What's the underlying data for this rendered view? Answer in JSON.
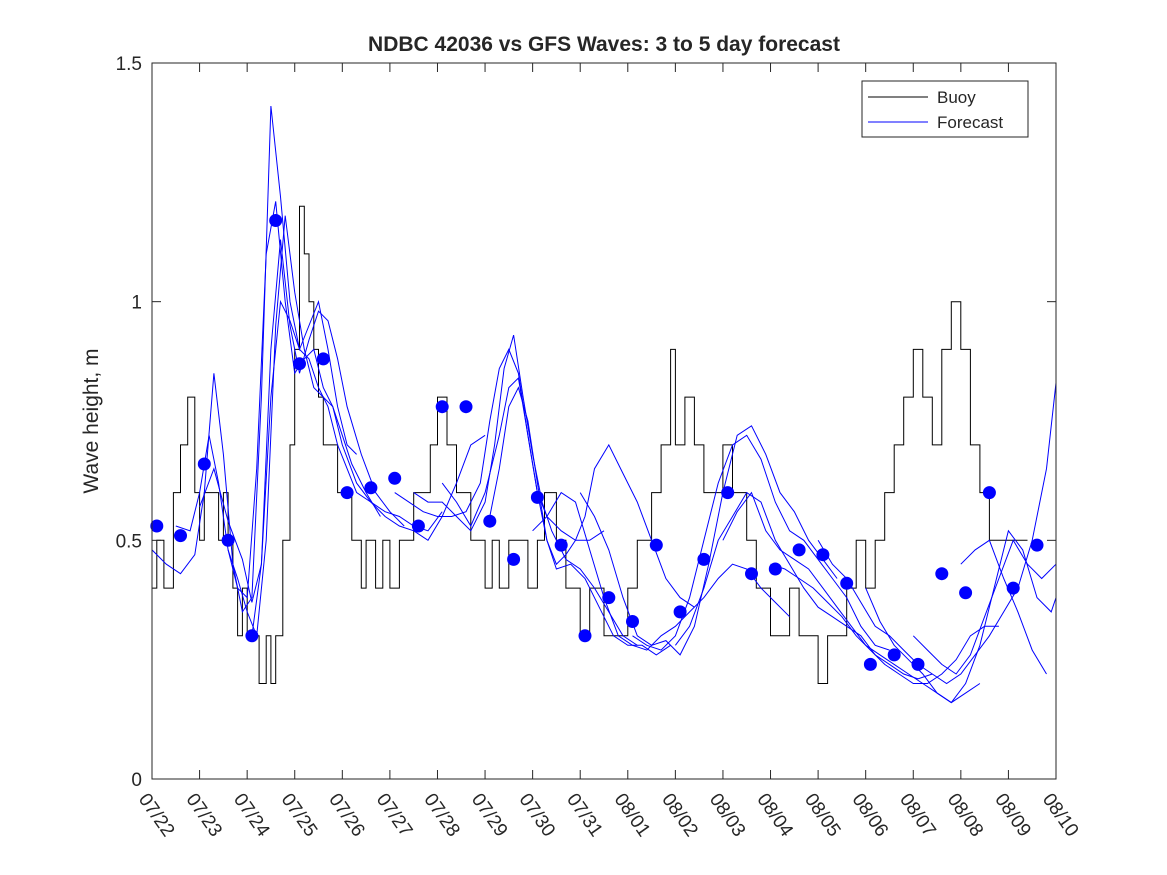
{
  "chart_data": {
    "type": "line",
    "title": "NDBC 42036 vs GFS Waves: 3 to 5 day forecast",
    "xlabel": "",
    "ylabel": "Wave height, m",
    "ylim": [
      0,
      1.5
    ],
    "yticks": [
      0,
      0.5,
      1,
      1.5
    ],
    "ytick_labels": [
      "0",
      "0.5",
      "1",
      "1.5"
    ],
    "xlim": [
      "2018-07-22",
      "2018-08-10"
    ],
    "xtick_labels": [
      "07/22",
      "07/23",
      "07/24",
      "07/25",
      "07/26",
      "07/27",
      "07/28",
      "07/29",
      "07/30",
      "07/31",
      "08/01",
      "08/02",
      "08/03",
      "08/04",
      "08/05",
      "08/06",
      "08/07",
      "08/08",
      "08/09",
      "08/10"
    ],
    "grid": false,
    "legend": {
      "position": "top-right",
      "entries": [
        "Buoy",
        "Forecast"
      ]
    },
    "colors": {
      "buoy": "#000000",
      "forecast": "#0000ff",
      "axes": "#262626"
    },
    "buoy": {
      "name": "Buoy",
      "x": [
        0,
        0.1,
        0.25,
        0.45,
        0.6,
        0.75,
        0.9,
        1.0,
        1.1,
        1.25,
        1.4,
        1.5,
        1.6,
        1.7,
        1.8,
        1.9,
        2.0,
        2.1,
        2.25,
        2.4,
        2.5,
        2.6,
        2.75,
        2.9,
        3.0,
        3.1,
        3.2,
        3.3,
        3.4,
        3.5,
        3.6,
        3.75,
        3.9,
        4.0,
        4.2,
        4.4,
        4.5,
        4.7,
        4.85,
        5.0,
        5.2,
        5.35,
        5.5,
        5.7,
        5.85,
        6.0,
        6.2,
        6.4,
        6.5,
        6.7,
        6.9,
        7.0,
        7.15,
        7.3,
        7.5,
        7.7,
        7.9,
        8.0,
        8.1,
        8.25,
        8.4,
        8.5,
        8.7,
        8.9,
        9.0,
        9.2,
        9.4,
        9.5,
        9.7,
        9.9,
        10.0,
        10.2,
        10.4,
        10.5,
        10.7,
        10.9,
        11.0,
        11.2,
        11.4,
        11.6,
        11.8,
        12.0,
        12.2,
        12.4,
        12.5,
        12.6,
        12.7,
        12.8,
        13.0,
        13.2,
        13.4,
        13.6,
        13.8,
        14.0,
        14.2,
        14.4,
        14.6,
        14.8,
        15.0,
        15.2,
        15.4,
        15.6,
        15.8,
        16.0,
        16.2,
        16.4,
        16.6,
        16.8,
        17.0,
        17.2,
        17.4,
        17.6,
        17.8,
        17.9,
        18.0,
        18.1,
        18.2,
        18.3,
        18.4
      ],
      "y": [
        0.4,
        0.5,
        0.4,
        0.6,
        0.7,
        0.8,
        0.6,
        0.5,
        0.6,
        0.6,
        0.5,
        0.6,
        0.5,
        0.4,
        0.3,
        0.4,
        0.3,
        0.3,
        0.2,
        0.3,
        0.2,
        0.3,
        0.5,
        0.7,
        0.9,
        1.2,
        1.1,
        1.0,
        0.9,
        0.8,
        0.7,
        0.7,
        0.6,
        0.6,
        0.5,
        0.4,
        0.5,
        0.4,
        0.5,
        0.4,
        0.5,
        0.5,
        0.6,
        0.6,
        0.7,
        0.8,
        0.7,
        0.6,
        0.6,
        0.5,
        0.5,
        0.4,
        0.5,
        0.4,
        0.5,
        0.5,
        0.4,
        0.4,
        0.5,
        0.6,
        0.6,
        0.5,
        0.4,
        0.4,
        0.3,
        0.4,
        0.4,
        0.3,
        0.3,
        0.3,
        0.4,
        0.5,
        0.5,
        0.6,
        0.7,
        0.9,
        0.7,
        0.8,
        0.7,
        0.6,
        0.6,
        0.7,
        0.6,
        0.6,
        0.5,
        0.5,
        0.4,
        0.4,
        0.3,
        0.3,
        0.4,
        0.3,
        0.3,
        0.2,
        0.3,
        0.3,
        0.4,
        0.5,
        0.4,
        0.5,
        0.6,
        0.7,
        0.8,
        0.9,
        0.8,
        0.7,
        0.9,
        1.0,
        0.9,
        0.7,
        0.6,
        0.5,
        0.5,
        0.5,
        0.5,
        0.5,
        0.5,
        0.5,
        0.5
      ]
    },
    "forecast": {
      "name": "Forecast",
      "runs": [
        {
          "x": [
            0,
            0.3,
            0.6,
            0.9,
            1.1,
            1.3,
            1.5,
            1.7,
            1.9,
            2.1,
            2.3,
            2.5,
            2.7,
            2.9,
            3.1,
            3.3,
            3.5,
            3.7,
            3.9,
            4.1,
            4.3
          ],
          "y": [
            0.48,
            0.45,
            0.43,
            0.47,
            0.6,
            0.85,
            0.68,
            0.45,
            0.35,
            0.38,
            0.8,
            1.41,
            1.22,
            1.0,
            0.9,
            0.95,
            1.0,
            0.9,
            0.78,
            0.7,
            0.68
          ]
        },
        {
          "x": [
            0.5,
            0.8,
            1.0,
            1.2,
            1.4,
            1.6,
            1.8,
            2.0,
            2.2,
            2.4,
            2.6,
            2.8,
            3.0,
            3.2,
            3.4,
            3.6,
            3.8,
            4.0,
            4.2,
            4.5,
            4.8
          ],
          "y": [
            0.53,
            0.52,
            0.6,
            0.72,
            0.62,
            0.48,
            0.4,
            0.38,
            0.65,
            1.1,
            1.21,
            1.0,
            0.85,
            0.88,
            0.9,
            0.82,
            0.78,
            0.72,
            0.66,
            0.6,
            0.55
          ]
        },
        {
          "x": [
            1.0,
            1.3,
            1.6,
            1.9,
            2.1,
            2.3,
            2.5,
            2.7,
            2.9,
            3.1,
            3.3,
            3.5,
            3.7,
            3.9,
            4.1,
            4.4,
            4.7,
            5.0,
            5.3
          ],
          "y": [
            0.57,
            0.65,
            0.54,
            0.46,
            0.37,
            0.45,
            0.9,
            1.13,
            0.95,
            0.85,
            0.92,
            0.98,
            0.96,
            0.88,
            0.78,
            0.68,
            0.6,
            0.56,
            0.53
          ]
        },
        {
          "x": [
            1.6,
            1.8,
            2.0,
            2.2,
            2.4,
            2.6,
            2.8,
            3.0,
            3.2,
            3.4,
            3.6,
            3.8,
            4.0,
            4.3,
            4.6,
            4.9,
            5.2,
            5.5,
            5.8,
            6.1
          ],
          "y": [
            0.48,
            0.42,
            0.35,
            0.3,
            0.5,
            0.95,
            1.18,
            1.02,
            0.9,
            0.82,
            0.8,
            0.78,
            0.7,
            0.62,
            0.58,
            0.56,
            0.55,
            0.53,
            0.52,
            0.56
          ]
        },
        {
          "x": [
            2.1,
            2.3,
            2.5,
            2.7,
            2.9,
            3.1,
            3.3,
            3.5,
            3.7,
            3.9,
            4.1,
            4.3,
            4.6,
            4.9,
            5.2,
            5.5,
            5.8,
            6.1,
            6.4,
            6.7,
            7.0
          ],
          "y": [
            0.3,
            0.45,
            0.8,
            1.0,
            0.96,
            0.9,
            0.88,
            0.82,
            0.78,
            0.7,
            0.65,
            0.6,
            0.58,
            0.55,
            0.53,
            0.52,
            0.5,
            0.55,
            0.62,
            0.7,
            0.72
          ]
        },
        {
          "x": [
            5.1,
            5.4,
            5.7,
            6.0,
            6.3,
            6.6,
            6.9,
            7.1,
            7.3,
            7.5,
            7.7,
            7.9,
            8.1,
            8.3,
            8.6,
            8.9,
            9.2,
            9.5
          ],
          "y": [
            0.6,
            0.58,
            0.56,
            0.55,
            0.55,
            0.56,
            0.62,
            0.75,
            0.86,
            0.9,
            0.85,
            0.72,
            0.6,
            0.55,
            0.52,
            0.5,
            0.5,
            0.52
          ]
        },
        {
          "x": [
            5.5,
            5.8,
            6.1,
            6.4,
            6.7,
            7.0,
            7.2,
            7.4,
            7.6,
            7.8,
            8.0,
            8.2,
            8.4,
            8.7,
            9.0,
            9.3,
            9.6,
            9.9,
            10.2
          ],
          "y": [
            0.6,
            0.58,
            0.58,
            0.55,
            0.52,
            0.58,
            0.7,
            0.86,
            0.93,
            0.8,
            0.68,
            0.58,
            0.52,
            0.46,
            0.44,
            0.4,
            0.35,
            0.3,
            0.28
          ]
        },
        {
          "x": [
            6.1,
            6.4,
            6.7,
            7.0,
            7.3,
            7.5,
            7.7,
            7.9,
            8.1,
            8.3,
            8.5,
            8.8,
            9.1,
            9.4,
            9.7,
            10.0,
            10.3,
            10.6,
            10.9
          ],
          "y": [
            0.62,
            0.58,
            0.53,
            0.6,
            0.72,
            0.82,
            0.84,
            0.72,
            0.6,
            0.5,
            0.44,
            0.45,
            0.42,
            0.36,
            0.3,
            0.28,
            0.28,
            0.26,
            0.28
          ]
        },
        {
          "x": [
            7.1,
            7.3,
            7.5,
            7.7,
            7.9,
            8.1,
            8.3,
            8.5,
            8.7,
            8.9,
            9.1,
            9.3,
            9.6,
            9.9,
            10.2,
            10.5,
            10.8,
            11.1,
            11.4
          ],
          "y": [
            0.55,
            0.65,
            0.78,
            0.82,
            0.75,
            0.62,
            0.5,
            0.45,
            0.47,
            0.5,
            0.55,
            0.65,
            0.7,
            0.64,
            0.58,
            0.5,
            0.42,
            0.38,
            0.36
          ]
        },
        {
          "x": [
            8.0,
            8.3,
            8.6,
            8.9,
            9.2,
            9.5,
            9.8,
            10.1,
            10.4,
            10.7,
            11.0,
            11.3,
            11.6,
            11.9,
            12.2,
            12.5,
            12.8,
            13.1,
            13.4
          ],
          "y": [
            0.52,
            0.55,
            0.6,
            0.58,
            0.48,
            0.38,
            0.3,
            0.28,
            0.27,
            0.3,
            0.32,
            0.35,
            0.38,
            0.42,
            0.45,
            0.44,
            0.4,
            0.37,
            0.34
          ]
        },
        {
          "x": [
            9.0,
            9.3,
            9.6,
            9.9,
            10.2,
            10.5,
            10.8,
            11.1,
            11.4,
            11.7,
            12.0,
            12.3,
            12.6,
            12.9,
            13.2,
            13.5,
            13.8,
            14.1,
            14.4
          ],
          "y": [
            0.6,
            0.55,
            0.48,
            0.38,
            0.3,
            0.28,
            0.29,
            0.26,
            0.32,
            0.45,
            0.6,
            0.72,
            0.74,
            0.68,
            0.6,
            0.56,
            0.5,
            0.46,
            0.42
          ]
        },
        {
          "x": [
            10.1,
            10.4,
            10.7,
            11.0,
            11.3,
            11.6,
            11.9,
            12.2,
            12.5,
            12.8,
            13.1,
            13.4,
            13.7,
            14.0,
            14.3,
            14.6,
            14.9,
            15.2,
            15.5
          ],
          "y": [
            0.3,
            0.28,
            0.27,
            0.3,
            0.38,
            0.5,
            0.62,
            0.7,
            0.72,
            0.67,
            0.58,
            0.52,
            0.5,
            0.46,
            0.42,
            0.38,
            0.32,
            0.28,
            0.27
          ]
        },
        {
          "x": [
            11.0,
            11.3,
            11.6,
            11.9,
            12.2,
            12.5,
            12.8,
            13.1,
            13.4,
            13.7,
            14.0,
            14.3,
            14.6,
            14.9,
            15.2,
            15.5,
            15.8,
            16.1,
            16.4
          ],
          "y": [
            0.28,
            0.32,
            0.4,
            0.5,
            0.55,
            0.6,
            0.58,
            0.5,
            0.45,
            0.4,
            0.36,
            0.34,
            0.32,
            0.3,
            0.26,
            0.24,
            0.22,
            0.21,
            0.22
          ]
        },
        {
          "x": [
            12.0,
            12.3,
            12.6,
            12.9,
            13.2,
            13.5,
            13.8,
            14.1,
            14.4,
            14.7,
            15.0,
            15.3,
            15.6,
            15.9,
            16.2,
            16.5,
            16.8,
            17.1,
            17.4
          ],
          "y": [
            0.5,
            0.56,
            0.6,
            0.52,
            0.48,
            0.46,
            0.44,
            0.4,
            0.36,
            0.32,
            0.28,
            0.26,
            0.24,
            0.22,
            0.2,
            0.18,
            0.16,
            0.18,
            0.2
          ]
        },
        {
          "x": [
            13.0,
            13.3,
            13.6,
            13.9,
            14.2,
            14.5,
            14.8,
            15.1,
            15.4,
            15.7,
            16.0,
            16.3,
            16.6,
            16.9,
            17.2,
            17.5,
            17.8
          ],
          "y": [
            0.45,
            0.44,
            0.42,
            0.4,
            0.37,
            0.34,
            0.3,
            0.27,
            0.24,
            0.22,
            0.2,
            0.2,
            0.22,
            0.25,
            0.3,
            0.32,
            0.32
          ]
        },
        {
          "x": [
            14.0,
            14.3,
            14.6,
            14.9,
            15.2,
            15.5,
            15.8,
            16.1,
            16.4,
            16.7,
            17.0,
            17.3,
            17.6,
            17.9,
            18.2,
            18.5,
            18.8,
            19.0
          ],
          "y": [
            0.5,
            0.45,
            0.42,
            0.37,
            0.32,
            0.3,
            0.27,
            0.24,
            0.22,
            0.2,
            0.22,
            0.26,
            0.3,
            0.35,
            0.4,
            0.5,
            0.65,
            0.83
          ]
        },
        {
          "x": [
            15.0,
            15.3,
            15.6,
            15.9,
            16.2,
            16.5,
            16.8,
            17.1,
            17.4,
            17.7,
            18.0,
            18.3,
            18.6,
            18.9,
            19.0
          ],
          "y": [
            0.4,
            0.33,
            0.28,
            0.25,
            0.22,
            0.18,
            0.16,
            0.2,
            0.28,
            0.4,
            0.52,
            0.48,
            0.38,
            0.35,
            0.38
          ]
        },
        {
          "x": [
            16.0,
            16.3,
            16.6,
            16.9,
            17.2,
            17.5,
            17.8,
            18.1,
            18.4,
            18.7,
            19.0
          ],
          "y": [
            0.3,
            0.27,
            0.24,
            0.22,
            0.26,
            0.34,
            0.42,
            0.5,
            0.45,
            0.42,
            0.45
          ]
        },
        {
          "x": [
            17.0,
            17.3,
            17.6,
            17.9,
            18.2,
            18.5,
            18.8
          ],
          "y": [
            0.45,
            0.48,
            0.5,
            0.42,
            0.35,
            0.27,
            0.22
          ]
        }
      ],
      "dots": {
        "x": [
          0.1,
          0.6,
          1.1,
          1.6,
          2.1,
          2.6,
          3.1,
          3.6,
          4.1,
          4.6,
          5.1,
          5.6,
          6.1,
          6.6,
          7.1,
          7.6,
          8.1,
          8.6,
          9.1,
          9.6,
          10.1,
          10.6,
          11.1,
          11.6,
          12.1,
          12.6,
          13.1,
          13.6,
          14.1,
          14.6,
          15.1,
          15.6,
          16.1,
          16.6,
          17.1,
          17.6,
          18.1,
          18.6
        ],
        "y": [
          0.53,
          0.51,
          0.66,
          0.5,
          0.3,
          1.17,
          0.87,
          0.88,
          0.6,
          0.61,
          0.63,
          0.53,
          0.78,
          0.78,
          0.54,
          0.46,
          0.59,
          0.49,
          0.3,
          0.38,
          0.33,
          0.49,
          0.35,
          0.46,
          0.6,
          0.43,
          0.44,
          0.48,
          0.47,
          0.41,
          0.24,
          0.26,
          0.24,
          0.43,
          0.39,
          0.6,
          0.4,
          0.49
        ]
      }
    }
  }
}
